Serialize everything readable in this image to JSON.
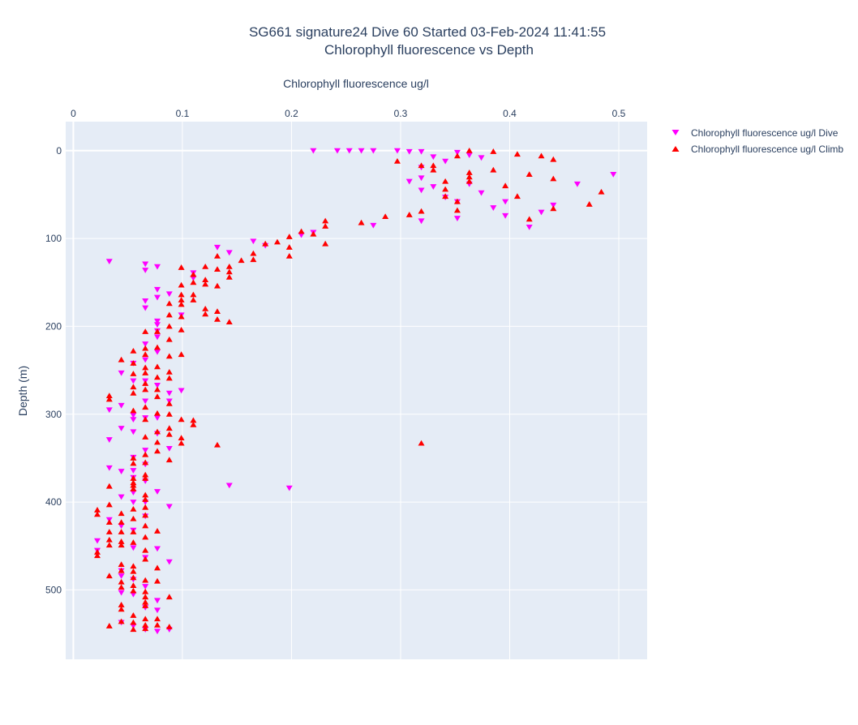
{
  "chart_data": {
    "type": "scatter",
    "title_line1": "SG661 signature24 Dive 60 Started 03-Feb-2024 11:41:55",
    "title_line2": "Chlorophyll fluorescence vs Depth",
    "xlabel": "Chlorophyll fluorescence ug/l",
    "ylabel": "Depth (m)",
    "xlim": [
      -0.007,
      0.526
    ],
    "ylim": [
      579,
      -33
    ],
    "x_axis_position": "top",
    "y_reversed": true,
    "grid": true,
    "legend_position": "right",
    "x_ticks": [
      0,
      0.1,
      0.2,
      0.3,
      0.4,
      0.5
    ],
    "x_tick_labels": [
      "0",
      "0.1",
      "0.2",
      "0.3",
      "0.4",
      "0.5"
    ],
    "y_ticks": [
      0,
      100,
      200,
      300,
      400,
      500
    ],
    "y_tick_labels": [
      "0",
      "100",
      "200",
      "300",
      "400",
      "500"
    ],
    "colors": {
      "plot_bg": "#e5ecf6",
      "grid": "#ffffff",
      "dive": "#ff00ff",
      "climb": "#ff0000",
      "text": "#2a3f5f"
    },
    "series": [
      {
        "name": "Chlorophyll fluorescence ug/l Dive",
        "marker": "triangle-down",
        "color": "#ff00ff",
        "points": [
          [
            0.22,
            0
          ],
          [
            0.242,
            0
          ],
          [
            0.253,
            0
          ],
          [
            0.264,
            0
          ],
          [
            0.275,
            0
          ],
          [
            0.297,
            0
          ],
          [
            0.308,
            1
          ],
          [
            0.319,
            1
          ],
          [
            0.33,
            7
          ],
          [
            0.341,
            12
          ],
          [
            0.352,
            2
          ],
          [
            0.363,
            5
          ],
          [
            0.374,
            8
          ],
          [
            0.319,
            19
          ],
          [
            0.308,
            35
          ],
          [
            0.319,
            31
          ],
          [
            0.33,
            41
          ],
          [
            0.341,
            53
          ],
          [
            0.352,
            58
          ],
          [
            0.352,
            77
          ],
          [
            0.319,
            80
          ],
          [
            0.374,
            48
          ],
          [
            0.385,
            65
          ],
          [
            0.396,
            58
          ],
          [
            0.396,
            74
          ],
          [
            0.418,
            87
          ],
          [
            0.429,
            70
          ],
          [
            0.44,
            62
          ],
          [
            0.462,
            38
          ],
          [
            0.495,
            27
          ],
          [
            0.319,
            45
          ],
          [
            0.363,
            38
          ],
          [
            0.275,
            85
          ],
          [
            0.22,
            93
          ],
          [
            0.209,
            96
          ],
          [
            0.176,
            108
          ],
          [
            0.165,
            103
          ],
          [
            0.143,
            116
          ],
          [
            0.132,
            110
          ],
          [
            0.11,
            139
          ],
          [
            0.11,
            145
          ],
          [
            0.033,
            126
          ],
          [
            0.066,
            129
          ],
          [
            0.066,
            136
          ],
          [
            0.077,
            132
          ],
          [
            0.088,
            163
          ],
          [
            0.077,
            158
          ],
          [
            0.077,
            167
          ],
          [
            0.066,
            171
          ],
          [
            0.066,
            179
          ],
          [
            0.099,
            187
          ],
          [
            0.077,
            194
          ],
          [
            0.077,
            198
          ],
          [
            0.077,
            205
          ],
          [
            0.077,
            212
          ],
          [
            0.066,
            220
          ],
          [
            0.077,
            229
          ],
          [
            0.066,
            238
          ],
          [
            0.055,
            242
          ],
          [
            0.044,
            253
          ],
          [
            0.055,
            262
          ],
          [
            0.066,
            262
          ],
          [
            0.077,
            267
          ],
          [
            0.088,
            276
          ],
          [
            0.099,
            273
          ],
          [
            0.066,
            285
          ],
          [
            0.088,
            285
          ],
          [
            0.044,
            290
          ],
          [
            0.033,
            295
          ],
          [
            0.055,
            301
          ],
          [
            0.066,
            304
          ],
          [
            0.077,
            304
          ],
          [
            0.055,
            306
          ],
          [
            0.044,
            316
          ],
          [
            0.055,
            320
          ],
          [
            0.077,
            322
          ],
          [
            0.088,
            339
          ],
          [
            0.066,
            341
          ],
          [
            0.055,
            349
          ],
          [
            0.033,
            329
          ],
          [
            0.066,
            357
          ],
          [
            0.055,
            364
          ],
          [
            0.044,
            365
          ],
          [
            0.055,
            372
          ],
          [
            0.033,
            361
          ],
          [
            0.066,
            376
          ],
          [
            0.055,
            389
          ],
          [
            0.077,
            388
          ],
          [
            0.044,
            394
          ],
          [
            0.055,
            400
          ],
          [
            0.066,
            400
          ],
          [
            0.088,
            405
          ],
          [
            0.066,
            416
          ],
          [
            0.033,
            420
          ],
          [
            0.044,
            427
          ],
          [
            0.055,
            432
          ],
          [
            0.022,
            444
          ],
          [
            0.022,
            455
          ],
          [
            0.055,
            452
          ],
          [
            0.066,
            463
          ],
          [
            0.077,
            453
          ],
          [
            0.044,
            478
          ],
          [
            0.044,
            484
          ],
          [
            0.055,
            488
          ],
          [
            0.088,
            468
          ],
          [
            0.066,
            496
          ],
          [
            0.044,
            503
          ],
          [
            0.055,
            505
          ],
          [
            0.077,
            512
          ],
          [
            0.066,
            520
          ],
          [
            0.077,
            523
          ],
          [
            0.044,
            537
          ],
          [
            0.055,
            541
          ],
          [
            0.066,
            545
          ],
          [
            0.077,
            547
          ],
          [
            0.088,
            545
          ],
          [
            0.143,
            381
          ],
          [
            0.198,
            384
          ]
        ]
      },
      {
        "name": "Chlorophyll fluorescence ug/l Climb",
        "marker": "triangle-up",
        "color": "#ff0000",
        "points": [
          [
            0.363,
            0
          ],
          [
            0.385,
            1
          ],
          [
            0.407,
            4
          ],
          [
            0.429,
            6
          ],
          [
            0.44,
            10
          ],
          [
            0.297,
            12
          ],
          [
            0.319,
            17
          ],
          [
            0.33,
            17
          ],
          [
            0.33,
            22
          ],
          [
            0.352,
            6
          ],
          [
            0.363,
            25
          ],
          [
            0.363,
            30
          ],
          [
            0.363,
            35
          ],
          [
            0.385,
            22
          ],
          [
            0.418,
            27
          ],
          [
            0.44,
            32
          ],
          [
            0.341,
            35
          ],
          [
            0.341,
            44
          ],
          [
            0.341,
            52
          ],
          [
            0.352,
            58
          ],
          [
            0.352,
            68
          ],
          [
            0.396,
            40
          ],
          [
            0.407,
            52
          ],
          [
            0.418,
            78
          ],
          [
            0.44,
            66
          ],
          [
            0.473,
            61
          ],
          [
            0.484,
            47
          ],
          [
            0.308,
            73
          ],
          [
            0.319,
            69
          ],
          [
            0.286,
            75
          ],
          [
            0.264,
            82
          ],
          [
            0.231,
            80
          ],
          [
            0.231,
            86
          ],
          [
            0.231,
            106
          ],
          [
            0.209,
            92
          ],
          [
            0.198,
            98
          ],
          [
            0.22,
            95
          ],
          [
            0.187,
            104
          ],
          [
            0.176,
            106
          ],
          [
            0.165,
            117
          ],
          [
            0.165,
            124
          ],
          [
            0.154,
            125
          ],
          [
            0.198,
            110
          ],
          [
            0.198,
            120
          ],
          [
            0.143,
            132
          ],
          [
            0.143,
            138
          ],
          [
            0.143,
            144
          ],
          [
            0.132,
            120
          ],
          [
            0.132,
            135
          ],
          [
            0.121,
            132
          ],
          [
            0.121,
            147
          ],
          [
            0.121,
            152
          ],
          [
            0.11,
            141
          ],
          [
            0.11,
            150
          ],
          [
            0.132,
            154
          ],
          [
            0.11,
            164
          ],
          [
            0.099,
            164
          ],
          [
            0.11,
            170
          ],
          [
            0.099,
            170
          ],
          [
            0.121,
            180
          ],
          [
            0.132,
            183
          ],
          [
            0.121,
            186
          ],
          [
            0.132,
            192
          ],
          [
            0.143,
            195
          ],
          [
            0.099,
            133
          ],
          [
            0.099,
            153
          ],
          [
            0.088,
            174
          ],
          [
            0.099,
            175
          ],
          [
            0.088,
            187
          ],
          [
            0.099,
            189
          ],
          [
            0.088,
            200
          ],
          [
            0.099,
            204
          ],
          [
            0.077,
            206
          ],
          [
            0.066,
            206
          ],
          [
            0.088,
            215
          ],
          [
            0.066,
            225
          ],
          [
            0.077,
            224
          ],
          [
            0.055,
            228
          ],
          [
            0.099,
            232
          ],
          [
            0.066,
            232
          ],
          [
            0.088,
            234
          ],
          [
            0.044,
            238
          ],
          [
            0.055,
            242
          ],
          [
            0.077,
            246
          ],
          [
            0.066,
            247
          ],
          [
            0.088,
            252
          ],
          [
            0.055,
            254
          ],
          [
            0.066,
            253
          ],
          [
            0.077,
            258
          ],
          [
            0.088,
            259
          ],
          [
            0.066,
            265
          ],
          [
            0.055,
            269
          ],
          [
            0.077,
            272
          ],
          [
            0.066,
            272
          ],
          [
            0.055,
            276
          ],
          [
            0.033,
            279
          ],
          [
            0.033,
            283
          ],
          [
            0.077,
            280
          ],
          [
            0.088,
            288
          ],
          [
            0.066,
            292
          ],
          [
            0.055,
            296
          ],
          [
            0.077,
            299
          ],
          [
            0.088,
            300
          ],
          [
            0.066,
            306
          ],
          [
            0.099,
            306
          ],
          [
            0.11,
            307
          ],
          [
            0.11,
            312
          ],
          [
            0.088,
            316
          ],
          [
            0.077,
            320
          ],
          [
            0.088,
            323
          ],
          [
            0.099,
            327
          ],
          [
            0.099,
            333
          ],
          [
            0.066,
            326
          ],
          [
            0.077,
            332
          ],
          [
            0.132,
            335
          ],
          [
            0.077,
            342
          ],
          [
            0.066,
            346
          ],
          [
            0.055,
            350
          ],
          [
            0.066,
            355
          ],
          [
            0.088,
            352
          ],
          [
            0.055,
            356
          ],
          [
            0.066,
            369
          ],
          [
            0.055,
            373
          ],
          [
            0.055,
            378
          ],
          [
            0.055,
            381
          ],
          [
            0.033,
            382
          ],
          [
            0.066,
            373
          ],
          [
            0.055,
            385
          ],
          [
            0.066,
            392
          ],
          [
            0.066,
            397
          ],
          [
            0.033,
            403
          ],
          [
            0.055,
            408
          ],
          [
            0.066,
            406
          ],
          [
            0.022,
            409
          ],
          [
            0.022,
            414
          ],
          [
            0.044,
            413
          ],
          [
            0.066,
            415
          ],
          [
            0.033,
            423
          ],
          [
            0.055,
            419
          ],
          [
            0.044,
            423
          ],
          [
            0.066,
            427
          ],
          [
            0.033,
            434
          ],
          [
            0.055,
            434
          ],
          [
            0.044,
            434
          ],
          [
            0.033,
            443
          ],
          [
            0.044,
            445
          ],
          [
            0.055,
            446
          ],
          [
            0.066,
            440
          ],
          [
            0.077,
            433
          ],
          [
            0.033,
            449
          ],
          [
            0.044,
            449
          ],
          [
            0.066,
            455
          ],
          [
            0.022,
            457
          ],
          [
            0.022,
            461
          ],
          [
            0.066,
            465
          ],
          [
            0.044,
            471
          ],
          [
            0.055,
            473
          ],
          [
            0.077,
            475
          ],
          [
            0.044,
            478
          ],
          [
            0.055,
            479
          ],
          [
            0.055,
            486
          ],
          [
            0.033,
            484
          ],
          [
            0.044,
            491
          ],
          [
            0.066,
            489
          ],
          [
            0.077,
            490
          ],
          [
            0.044,
            497
          ],
          [
            0.055,
            495
          ],
          [
            0.066,
            502
          ],
          [
            0.055,
            501
          ],
          [
            0.088,
            508
          ],
          [
            0.066,
            508
          ],
          [
            0.044,
            517
          ],
          [
            0.066,
            518
          ],
          [
            0.066,
            514
          ],
          [
            0.044,
            522
          ],
          [
            0.055,
            529
          ],
          [
            0.066,
            533
          ],
          [
            0.077,
            533
          ],
          [
            0.055,
            537
          ],
          [
            0.044,
            536
          ],
          [
            0.066,
            540
          ],
          [
            0.077,
            540
          ],
          [
            0.088,
            542
          ],
          [
            0.055,
            545
          ],
          [
            0.066,
            544
          ],
          [
            0.033,
            541
          ],
          [
            0.319,
            333
          ]
        ]
      }
    ]
  }
}
